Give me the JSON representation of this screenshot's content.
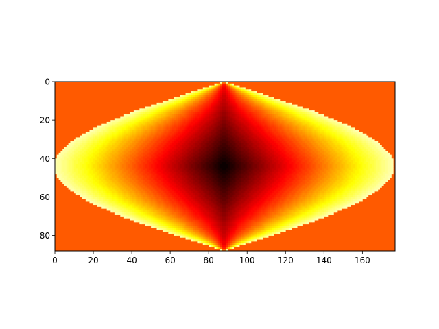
{
  "chart_data": {
    "type": "heatmap",
    "title": "",
    "xlabel": "",
    "ylabel": "",
    "xlim": [
      0,
      177
    ],
    "ylim": [
      88,
      0
    ],
    "y_axis_inverted": true,
    "x_ticks": [
      0,
      20,
      40,
      60,
      80,
      100,
      120,
      140,
      160
    ],
    "y_ticks": [
      0,
      20,
      40,
      60,
      80
    ],
    "colormap": "hot",
    "background_fill_color": "#ff5a00",
    "grid": false,
    "legend": "none",
    "colorbar": false,
    "image_shape": [
      88,
      177
    ],
    "description_of_field": {
      "shape": "sinusoidal projection (lens) with poles at top and bottom center and widest at row 44",
      "center": [
        88,
        44
      ],
      "value_at_center": 0.0,
      "value_at_left_right_edges": 1.0,
      "outside_region_value": 0.7
    }
  }
}
